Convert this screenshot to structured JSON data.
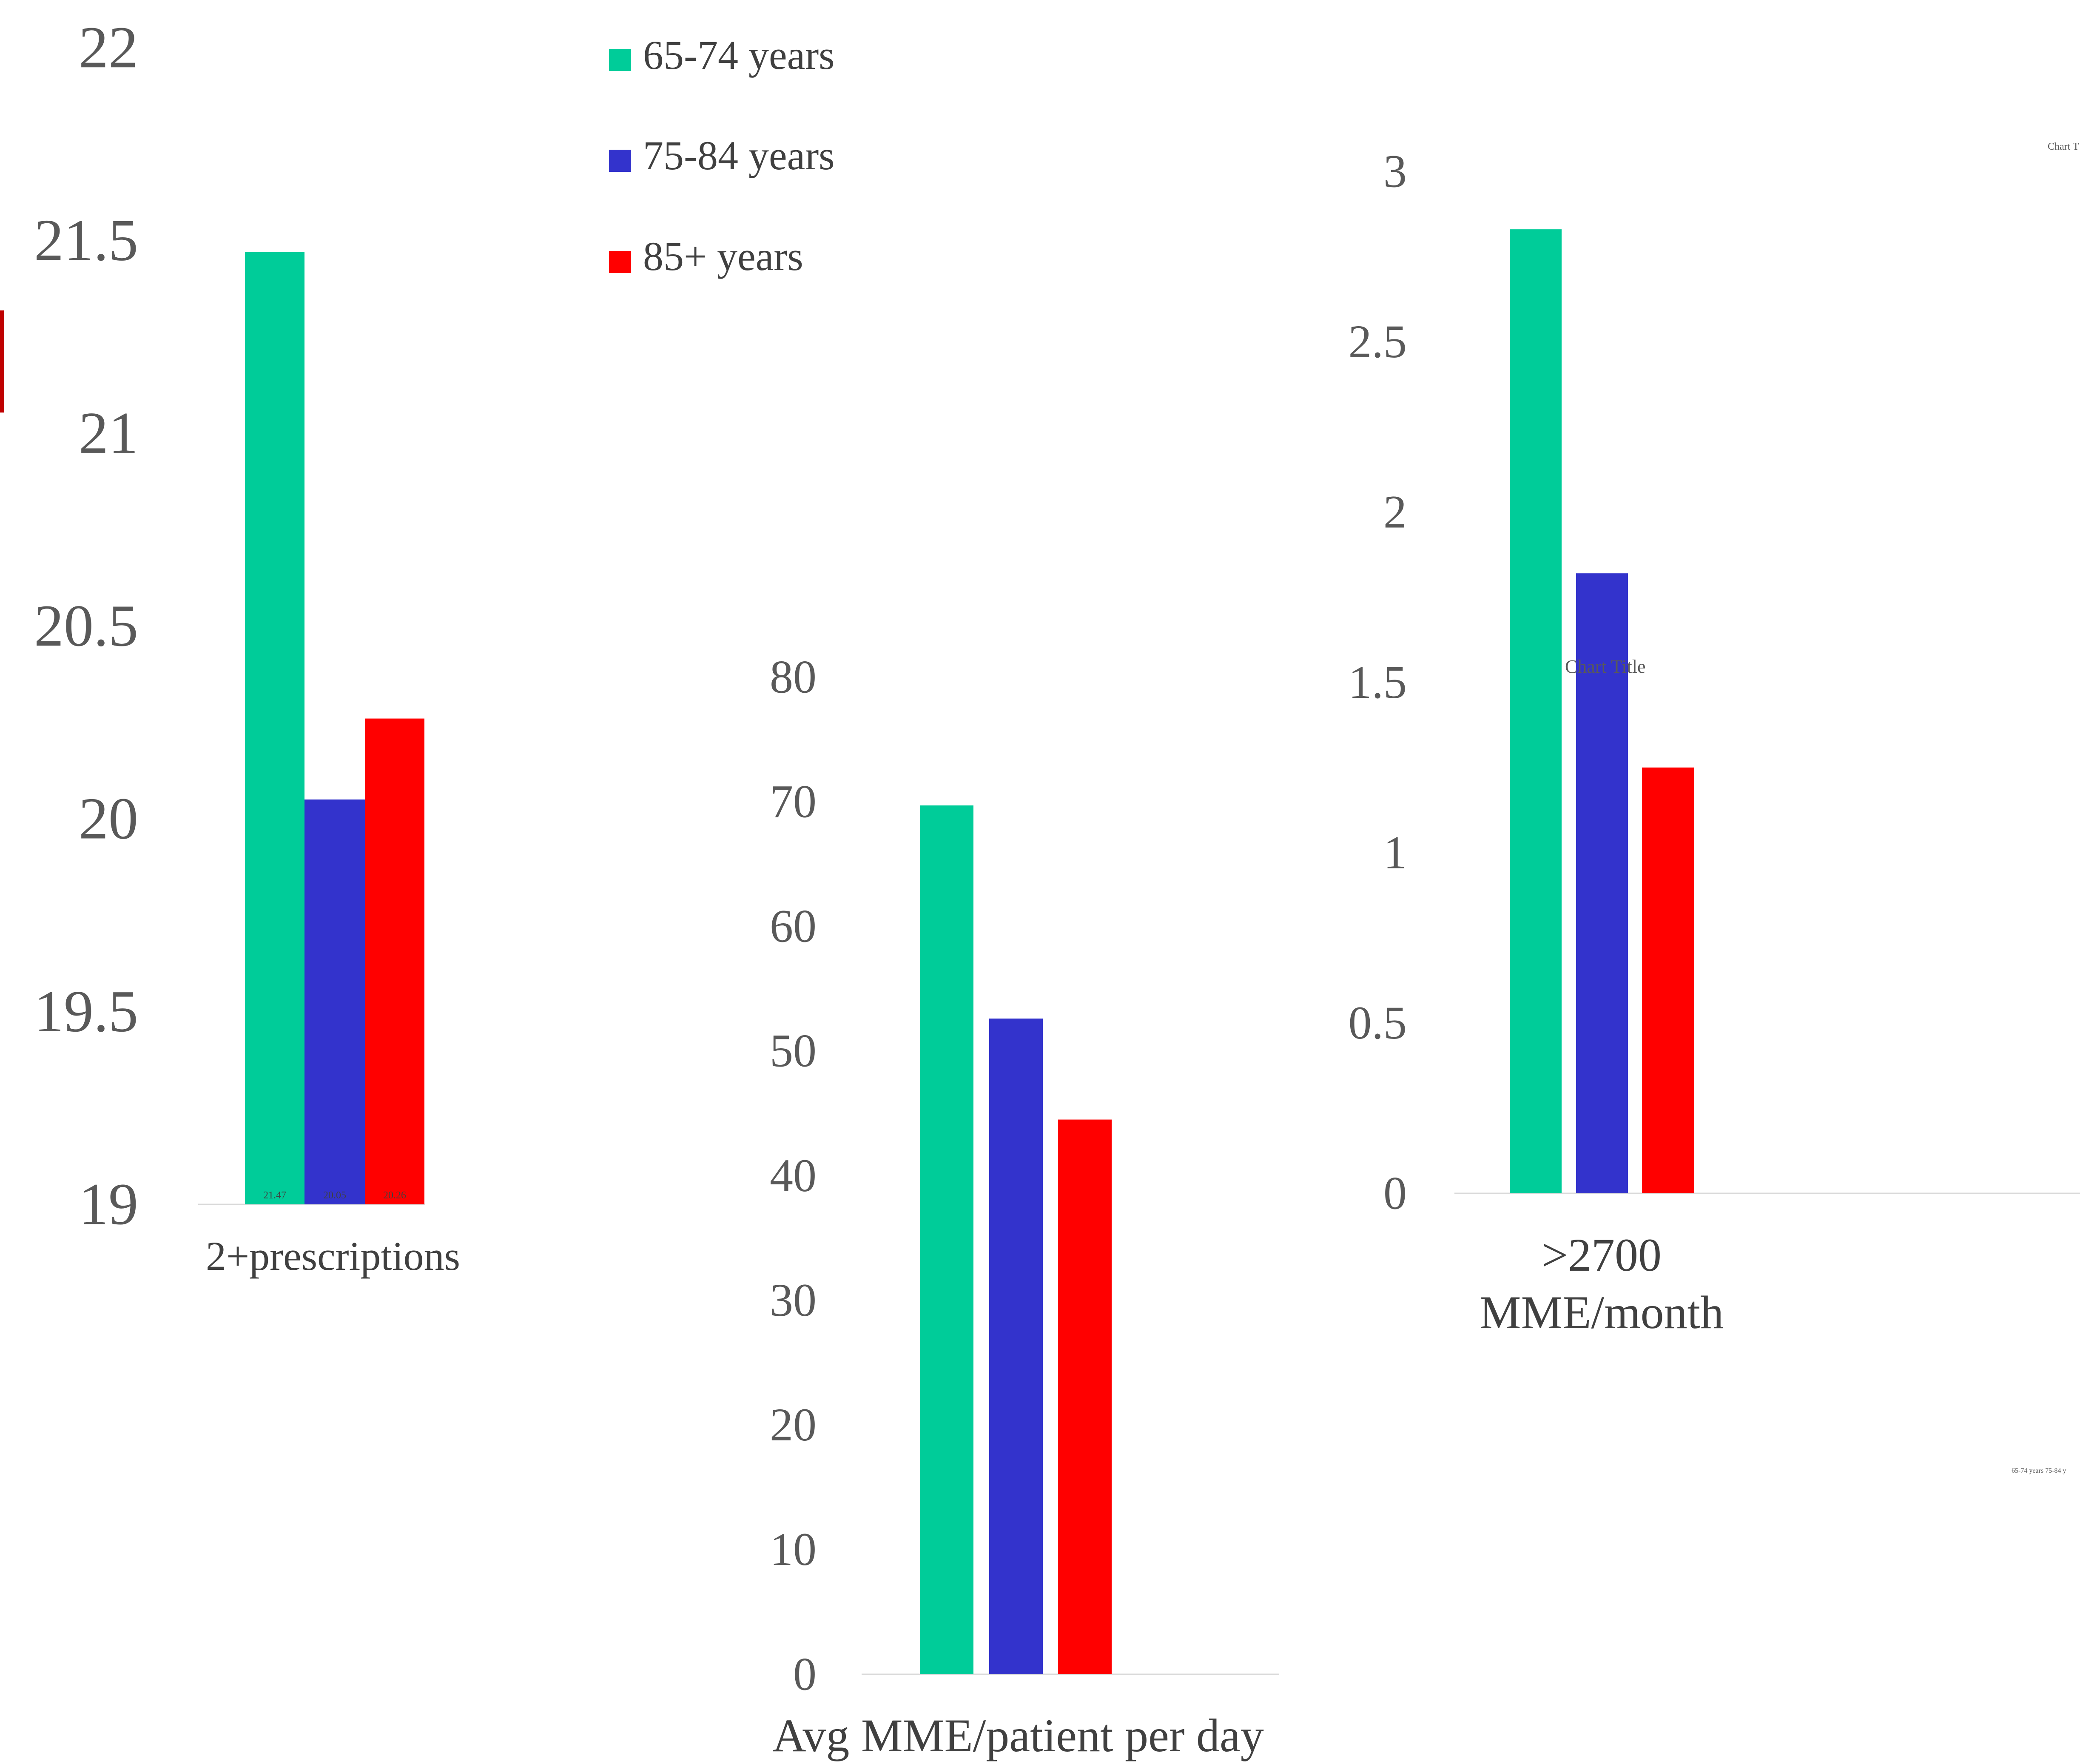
{
  "colors": {
    "series_65_74": "#00CC99",
    "series_75_84": "#3333CC",
    "series_85_plus": "#FF0000",
    "axis_text": "#595959",
    "axis_line": "#D9D9D9",
    "accent_bar": "#C00000"
  },
  "legend": {
    "items": [
      "65-74 years",
      "75-84 years",
      "85+ years"
    ]
  },
  "overlay": {
    "chart_title_1": "Chart Title",
    "chart_title_2": "Chart T",
    "mini_legend": "65-74 years  75-84 y"
  },
  "chart_data": [
    {
      "type": "bar",
      "categories": [
        "2+prescriptions"
      ],
      "series": [
        {
          "name": "65-74 years",
          "values": [
            21.47
          ]
        },
        {
          "name": "75-84 years",
          "values": [
            20.05
          ]
        },
        {
          "name": "85+ years",
          "values": [
            20.26
          ]
        }
      ],
      "data_labels": [
        "21.47",
        "20.05",
        "20.26"
      ],
      "yticks": [
        "19",
        "19.5",
        "20",
        "20.5",
        "21",
        "21.5",
        "22"
      ],
      "ylim": [
        19,
        22
      ],
      "grid": false
    },
    {
      "type": "bar",
      "categories": [
        "Avg MME/patient per day"
      ],
      "series": [
        {
          "name": "65-74 years",
          "values": [
            69.7
          ]
        },
        {
          "name": "75-84 years",
          "values": [
            52.6
          ]
        },
        {
          "name": "85+ years",
          "values": [
            44.5
          ]
        }
      ],
      "yticks": [
        "0",
        "10",
        "20",
        "30",
        "40",
        "50",
        "60",
        "70",
        "80"
      ],
      "ylim": [
        0,
        80
      ],
      "grid": false
    },
    {
      "type": "bar",
      "categories": [
        ">2700 MME/month"
      ],
      "series": [
        {
          "name": "65-74 years",
          "values": [
            2.83
          ]
        },
        {
          "name": "75-84 years",
          "values": [
            1.82
          ]
        },
        {
          "name": "85+ years",
          "values": [
            1.25
          ]
        }
      ],
      "yticks": [
        "0",
        "0.5",
        "1",
        "1.5",
        "2",
        "2.5",
        "3"
      ],
      "ylim": [
        0,
        3
      ],
      "grid": false
    }
  ]
}
